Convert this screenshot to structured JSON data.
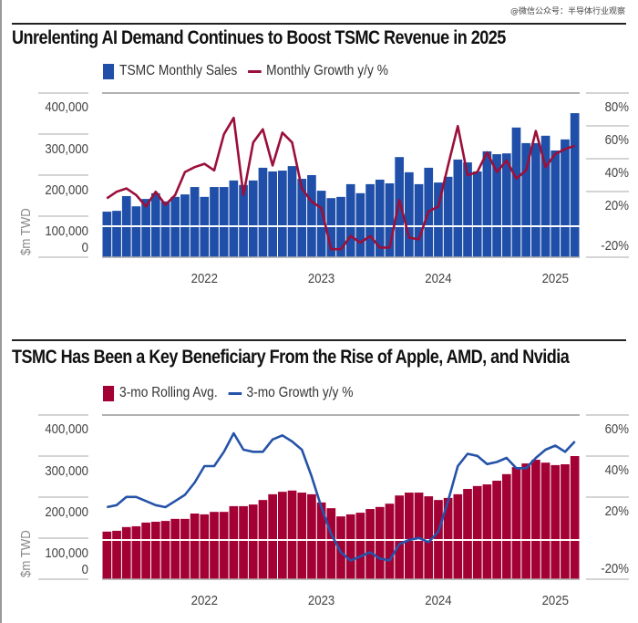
{
  "watermark": "@微信公众号：半导体行业观察",
  "chart_data": [
    {
      "type": "bar",
      "title": "Unrelenting AI Demand Continues to Boost TSMC Revenue in 2025",
      "legend": [
        "TSMC Monthly Sales",
        "Monthly Growth y/y %"
      ],
      "legend_position": "top-left",
      "ylabel": "$m TWD",
      "y_tick_labels": [
        "400,000",
        "300,000",
        "200,000",
        "100,000",
        "0"
      ],
      "y2_tick_labels": [
        "80%",
        "60%",
        "40%",
        "20%",
        "-20%"
      ],
      "x_tick_labels": [
        "2022",
        "2023",
        "2024",
        "2025"
      ],
      "ylim": [
        0,
        400000
      ],
      "y2lim": [
        -20,
        80
      ],
      "grid": true,
      "period": "Mar 2021 – Mar 2025 (monthly)",
      "colors": {
        "bars": "#1f4fa8",
        "line": "#9b0f3a"
      },
      "series": [
        {
          "name": "TSMC Monthly Sales",
          "kind": "bar",
          "axis": "left",
          "values": [
            111000,
            113000,
            149000,
            124000,
            142000,
            156000,
            136000,
            147000,
            153000,
            171000,
            147000,
            171000,
            171000,
            187000,
            176000,
            187000,
            218000,
            209000,
            211000,
            222000,
            191000,
            200000,
            162000,
            144000,
            147000,
            178000,
            156000,
            178000,
            189000,
            180000,
            244000,
            207000,
            178000,
            218000,
            182000,
            196000,
            238000,
            231000,
            209000,
            258000,
            251000,
            253000,
            316000,
            278000,
            278000,
            296000,
            260000,
            287000,
            351000
          ]
        },
        {
          "name": "Monthly Growth y/y %",
          "kind": "line",
          "axis": "right",
          "values": [
            17,
            21,
            23,
            19,
            12,
            21,
            13,
            19,
            33,
            36,
            38,
            34,
            56,
            66,
            19,
            51,
            59,
            37,
            57,
            51,
            23,
            15,
            11,
            -14,
            -14,
            -6,
            -10,
            -6,
            -13,
            -13,
            16,
            -7,
            -8,
            9,
            12,
            37,
            61,
            31,
            33,
            45,
            33,
            40,
            29,
            34,
            58,
            36,
            44,
            47,
            49
          ]
        }
      ]
    },
    {
      "type": "bar",
      "title": "TSMC Has Been a Key Beneficiary From the Rise of Apple, AMD, and Nvidia",
      "legend": [
        "3-mo Rolling Avg.",
        "3-mo Growth y/y %"
      ],
      "legend_position": "top-left",
      "ylabel": "$m TWD",
      "y_tick_labels": [
        "400,000",
        "300,000",
        "200,000",
        "100,000",
        "0"
      ],
      "y2_tick_labels": [
        "60%",
        "40%",
        "20%",
        "-20%"
      ],
      "x_tick_labels": [
        "2022",
        "2023",
        "2024",
        "2025"
      ],
      "ylim": [
        0,
        400000
      ],
      "y2lim": [
        -20,
        60
      ],
      "grid": true,
      "period": "Mar 2021 – Mar 2025 (monthly)",
      "colors": {
        "bars": "#a30034",
        "line": "#2553a8"
      },
      "series": [
        {
          "name": "3-mo Rolling Avg.",
          "kind": "bar",
          "axis": "left",
          "values": [
            116000,
            118000,
            127000,
            129000,
            138000,
            140000,
            142000,
            147000,
            147000,
            160000,
            158000,
            164000,
            164000,
            178000,
            178000,
            182000,
            193000,
            207000,
            213000,
            216000,
            211000,
            207000,
            187000,
            173000,
            153000,
            158000,
            162000,
            171000,
            176000,
            184000,
            204000,
            211000,
            211000,
            202000,
            193000,
            198000,
            207000,
            220000,
            227000,
            231000,
            240000,
            256000,
            273000,
            282000,
            291000,
            284000,
            278000,
            280000,
            300000
          ]
        },
        {
          "name": "3-mo Growth y/y %",
          "kind": "line",
          "axis": "right",
          "values": [
            16,
            17,
            21,
            21,
            19,
            17,
            16,
            19,
            22,
            28,
            36,
            36,
            43,
            52,
            44,
            43,
            43,
            49,
            51,
            48,
            44,
            31,
            16,
            3,
            -6,
            -10,
            -8,
            -6,
            -9,
            -10,
            -2,
            0,
            1,
            -1,
            4,
            19,
            36,
            42,
            41,
            37,
            38,
            40,
            35,
            35,
            40,
            44,
            46,
            43,
            48
          ]
        }
      ]
    }
  ]
}
